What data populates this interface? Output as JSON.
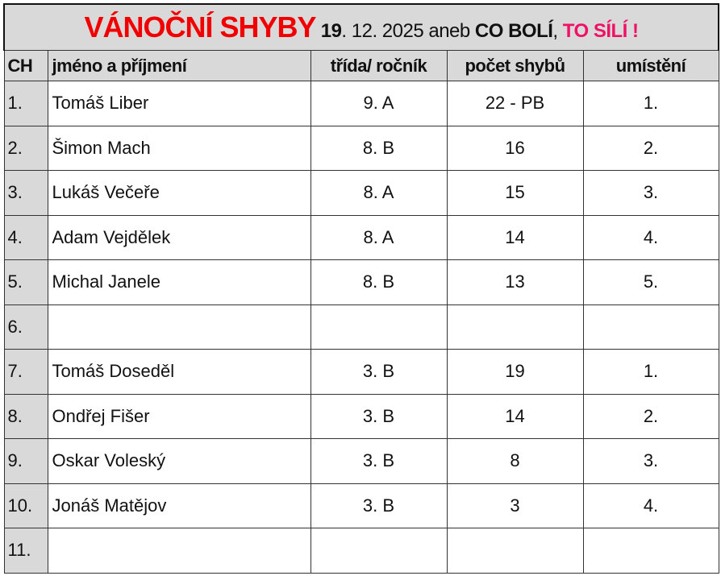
{
  "title": {
    "main": "VÁNOČNÍ SHYBY",
    "date_day": "19",
    "date_rest": ". 12. 2025 aneb ",
    "motto_part1": "CO BOLÍ",
    "comma": ", ",
    "motto_part2": "TO SÍLÍ !"
  },
  "colors": {
    "title_red": "#f00000",
    "motto_pink": "#ee1166",
    "header_gray": "#d9d9d9"
  },
  "columns": [
    "CH",
    "jméno a příjmení",
    "třída/ ročník",
    "počet shybů",
    "umístění"
  ],
  "rows": [
    {
      "ch": "1.",
      "name": "Tomáš Liber",
      "class": "9. A",
      "count": "22 - PB",
      "place": "1."
    },
    {
      "ch": "2.",
      "name": "Šimon Mach",
      "class": "8. B",
      "count": "16",
      "place": "2."
    },
    {
      "ch": "3.",
      "name": "Lukáš Večeře",
      "class": "8. A",
      "count": "15",
      "place": "3."
    },
    {
      "ch": "4.",
      "name": "Adam Vejdělek",
      "class": "8. A",
      "count": "14",
      "place": "4."
    },
    {
      "ch": "5.",
      "name": "Michal Janele",
      "class": "8. B",
      "count": "13",
      "place": "5."
    },
    {
      "ch": "6.",
      "name": "",
      "class": "",
      "count": "",
      "place": ""
    },
    {
      "ch": "7.",
      "name": "Tomáš Doseděl",
      "class": "3. B",
      "count": "19",
      "place": "1."
    },
    {
      "ch": "8.",
      "name": "Ondřej Fišer",
      "class": "3. B",
      "count": "14",
      "place": "2."
    },
    {
      "ch": "9.",
      "name": "Oskar Voleský",
      "class": "3. B",
      "count": "8",
      "place": "3."
    },
    {
      "ch": "10.",
      "name": "Jonáš Matějov",
      "class": "3. B",
      "count": "3",
      "place": "4."
    },
    {
      "ch": "11.",
      "name": "",
      "class": "",
      "count": "",
      "place": ""
    }
  ]
}
